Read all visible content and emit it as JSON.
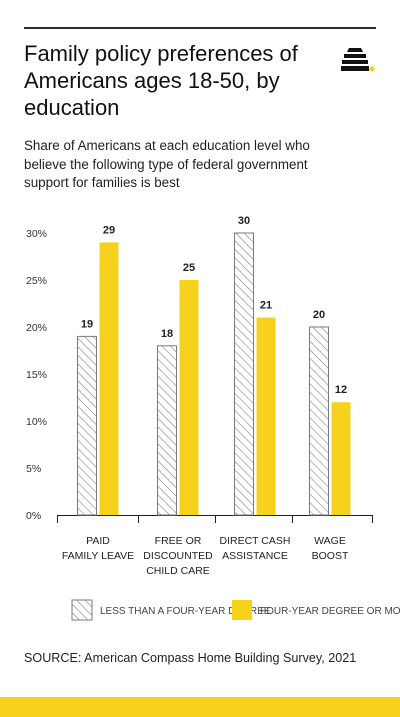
{
  "header": {
    "title": "Family policy preferences of Americans ages 18-50, by education",
    "subtitle": "Share of Americans at each education level who believe the following type of federal government support for families is best"
  },
  "source": "SOURCE: American Compass Home Building Survey, 2021",
  "colors": {
    "accent": "#f7d21c",
    "hatch": "#7a7a7a",
    "text": "#1a1a1a"
  },
  "chart_data": {
    "type": "bar",
    "title": "",
    "xlabel": "",
    "ylabel": "",
    "ylim": [
      0,
      30
    ],
    "yticks": [
      "0%",
      "5%",
      "10%",
      "15%",
      "20%",
      "25%",
      "30%"
    ],
    "categories": [
      [
        "PAID",
        "FAMILY LEAVE"
      ],
      [
        "FREE OR",
        "DISCOUNTED",
        "CHILD CARE"
      ],
      [
        "DIRECT CASH",
        "ASSISTANCE"
      ],
      [
        "WAGE",
        "BOOST"
      ]
    ],
    "series": [
      {
        "name": "LESS THAN A FOUR-YEAR DEGREE",
        "values": [
          19,
          18,
          30,
          20
        ],
        "fill": "hatched"
      },
      {
        "name": "FOUR-YEAR DEGREE OR MORE",
        "values": [
          29,
          25,
          21,
          12
        ],
        "fill": "#f7d21c"
      }
    ],
    "legend_position": "bottom",
    "grid": false
  }
}
